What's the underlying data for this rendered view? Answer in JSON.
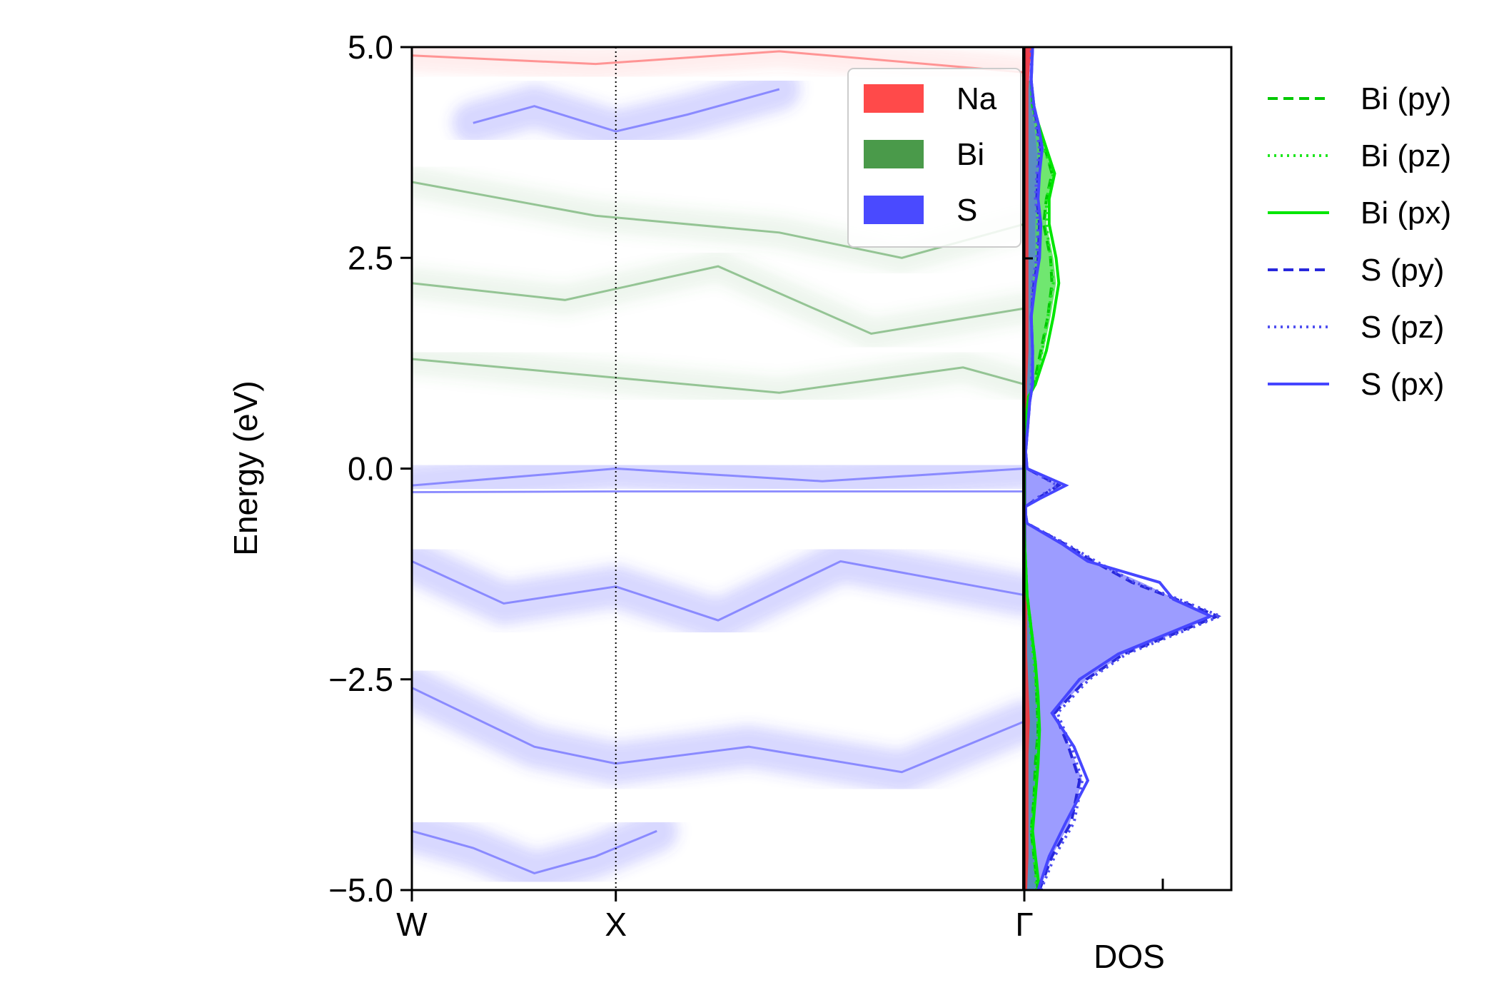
{
  "chart_data": [
    {
      "type": "heatmap",
      "ylabel": "Energy (eV)",
      "ylim": [
        -5.0,
        5.0
      ],
      "yticks": [
        "5.0",
        "2.5",
        "0.0",
        "−2.5",
        "−5.0"
      ],
      "ytick_values": [
        5.0,
        2.5,
        0.0,
        -2.5,
        -5.0
      ],
      "kpoints": [
        "W",
        "X",
        "Γ"
      ],
      "kpoint_positions": [
        0.0,
        0.333,
        1.0
      ],
      "legend_position": "top-right",
      "series": [
        {
          "name": "Na",
          "color": "#ff4a4a"
        },
        {
          "name": "Bi",
          "color": "#4a9a4a"
        },
        {
          "name": "S",
          "color": "#4a4aff"
        }
      ],
      "bands": [
        {
          "series": "S",
          "path": [
            [
              0.0,
              -0.28
            ],
            [
              0.333,
              -0.27
            ],
            [
              0.67,
              -0.27
            ],
            [
              1.0,
              -0.27
            ]
          ]
        },
        {
          "series": "S",
          "path": [
            [
              0.0,
              -0.2
            ],
            [
              0.333,
              0.0
            ],
            [
              0.67,
              -0.15
            ],
            [
              1.0,
              0.0
            ]
          ]
        },
        {
          "series": "S",
          "path": [
            [
              0.0,
              -1.1
            ],
            [
              0.15,
              -1.6
            ],
            [
              0.333,
              -1.4
            ],
            [
              0.5,
              -1.8
            ],
            [
              0.7,
              -1.1
            ],
            [
              1.0,
              -1.5
            ]
          ]
        },
        {
          "series": "S",
          "path": [
            [
              0.0,
              -2.6
            ],
            [
              0.2,
              -3.3
            ],
            [
              0.333,
              -3.5
            ],
            [
              0.55,
              -3.3
            ],
            [
              0.8,
              -3.6
            ],
            [
              1.0,
              -3.0
            ]
          ]
        },
        {
          "series": "S",
          "path": [
            [
              0.0,
              -4.3
            ],
            [
              0.1,
              -4.5
            ],
            [
              0.2,
              -4.8
            ],
            [
              0.3,
              -4.6
            ],
            [
              0.4,
              -4.3
            ]
          ]
        },
        {
          "series": "S",
          "path": [
            [
              0.1,
              4.1
            ],
            [
              0.2,
              4.3
            ],
            [
              0.333,
              4.0
            ],
            [
              0.45,
              4.2
            ],
            [
              0.6,
              4.5
            ]
          ]
        },
        {
          "series": "Bi",
          "path": [
            [
              0.0,
              3.4
            ],
            [
              0.3,
              3.0
            ],
            [
              0.6,
              2.8
            ],
            [
              0.8,
              2.5
            ],
            [
              1.0,
              2.9
            ]
          ]
        },
        {
          "series": "Bi",
          "path": [
            [
              0.0,
              2.2
            ],
            [
              0.25,
              2.0
            ],
            [
              0.5,
              2.4
            ],
            [
              0.75,
              1.6
            ],
            [
              1.0,
              1.9
            ]
          ]
        },
        {
          "series": "Bi",
          "path": [
            [
              0.0,
              1.3
            ],
            [
              0.3,
              1.1
            ],
            [
              0.6,
              0.9
            ],
            [
              0.9,
              1.2
            ],
            [
              1.0,
              1.0
            ]
          ]
        },
        {
          "series": "Na",
          "path": [
            [
              0.0,
              4.9
            ],
            [
              0.3,
              4.8
            ],
            [
              0.6,
              4.95
            ],
            [
              1.0,
              4.7
            ]
          ]
        }
      ]
    },
    {
      "type": "area",
      "xlabel": "DOS",
      "ylim": [
        -5.0,
        5.0
      ],
      "xlim": [
        0,
        1.5
      ],
      "legend_position": "right-outside",
      "series": [
        {
          "name": "Bi (py)",
          "color": "#00c800",
          "dash": "dashed",
          "x": [
            0.1,
            0.07,
            0.05,
            0.07,
            0.08,
            0.1,
            0.09,
            0.08,
            0.02,
            0.0,
            0.0,
            0.01,
            0.02,
            0.03,
            0.07,
            0.12,
            0.17,
            0.2,
            0.19,
            0.14,
            0.16,
            0.2,
            0.15,
            0.1,
            0.07,
            0.05
          ],
          "y": [
            -5.0,
            -4.6,
            -4.3,
            -3.9,
            -3.5,
            -3.1,
            -2.7,
            -2.3,
            -1.5,
            -0.8,
            0.0,
            0.4,
            0.7,
            0.85,
            1.0,
            1.4,
            1.8,
            2.2,
            2.5,
            2.9,
            3.2,
            3.5,
            3.8,
            4.1,
            4.3,
            4.6
          ]
        },
        {
          "name": "Bi (pz)",
          "color": "#1ee61e",
          "dash": "dotted",
          "x": [
            0.09,
            0.07,
            0.05,
            0.07,
            0.09,
            0.1,
            0.09,
            0.07,
            0.02,
            0.0,
            0.0,
            0.01,
            0.02,
            0.03,
            0.08,
            0.13,
            0.17,
            0.21,
            0.19,
            0.16,
            0.16,
            0.21,
            0.14,
            0.09,
            0.06,
            0.05
          ],
          "y": [
            -5.0,
            -4.6,
            -4.3,
            -3.9,
            -3.5,
            -3.1,
            -2.7,
            -2.3,
            -1.5,
            -0.8,
            0.0,
            0.4,
            0.7,
            0.85,
            1.0,
            1.4,
            1.8,
            2.2,
            2.5,
            2.9,
            3.2,
            3.5,
            3.8,
            4.1,
            4.3,
            4.6
          ]
        },
        {
          "name": "Bi (px)",
          "color": "#00e600",
          "dash": "solid",
          "x": [
            0.11,
            0.08,
            0.06,
            0.08,
            0.1,
            0.11,
            0.1,
            0.08,
            0.02,
            0.0,
            0.0,
            0.01,
            0.02,
            0.03,
            0.08,
            0.16,
            0.21,
            0.25,
            0.23,
            0.18,
            0.18,
            0.22,
            0.16,
            0.1,
            0.06,
            0.05
          ],
          "y": [
            -5.0,
            -4.6,
            -4.3,
            -3.9,
            -3.5,
            -3.1,
            -2.7,
            -2.3,
            -1.5,
            -0.8,
            0.0,
            0.4,
            0.7,
            0.85,
            1.0,
            1.4,
            1.8,
            2.2,
            2.5,
            2.9,
            3.2,
            3.5,
            3.8,
            4.1,
            4.3,
            4.6
          ]
        },
        {
          "name": "S (py)",
          "color": "#2828dc",
          "dash": "dashed",
          "x": [
            0.11,
            0.2,
            0.34,
            0.4,
            0.32,
            0.22,
            0.45,
            0.72,
            1.1,
            1.4,
            1.1,
            0.78,
            0.5,
            0.3,
            0.02,
            0.01,
            0.01,
            0.1,
            0.25,
            0.02,
            0.01,
            0.03,
            0.04,
            0.06,
            0.06,
            0.05,
            0.07,
            0.1,
            0.11,
            0.09,
            0.1,
            0.12,
            0.09,
            0.07,
            0.05,
            0.06
          ],
          "y": [
            -5.0,
            -4.6,
            -4.2,
            -3.7,
            -3.3,
            -2.9,
            -2.5,
            -2.2,
            -1.95,
            -1.75,
            -1.55,
            -1.35,
            -1.1,
            -0.9,
            -0.65,
            -0.55,
            -0.45,
            -0.35,
            -0.2,
            0.0,
            0.2,
            0.6,
            0.8,
            1.0,
            1.4,
            1.8,
            2.2,
            2.5,
            2.9,
            3.2,
            3.5,
            3.8,
            4.1,
            4.3,
            4.6,
            5.0
          ]
        },
        {
          "name": "S (pz)",
          "color": "#5050f0",
          "dash": "dotted",
          "x": [
            0.12,
            0.22,
            0.36,
            0.42,
            0.34,
            0.24,
            0.47,
            0.74,
            1.12,
            1.42,
            1.12,
            0.8,
            0.52,
            0.31,
            0.02,
            0.01,
            0.01,
            0.09,
            0.24,
            0.02,
            0.01,
            0.03,
            0.04,
            0.05,
            0.06,
            0.05,
            0.06,
            0.09,
            0.1,
            0.08,
            0.09,
            0.11,
            0.08,
            0.06,
            0.05,
            0.05
          ],
          "y": [
            -5.0,
            -4.6,
            -4.2,
            -3.7,
            -3.3,
            -2.9,
            -2.5,
            -2.2,
            -1.95,
            -1.75,
            -1.55,
            -1.35,
            -1.1,
            -0.9,
            -0.65,
            -0.55,
            -0.45,
            -0.35,
            -0.2,
            0.0,
            0.2,
            0.6,
            0.8,
            1.0,
            1.4,
            1.8,
            2.2,
            2.5,
            2.9,
            3.2,
            3.5,
            3.8,
            4.1,
            4.3,
            4.6,
            5.0
          ]
        },
        {
          "name": "S (px)",
          "color": "#4646ff",
          "dash": "solid",
          "x": [
            0.1,
            0.18,
            0.3,
            0.46,
            0.36,
            0.2,
            0.4,
            0.68,
            1.05,
            1.35,
            1.08,
            0.98,
            0.46,
            0.28,
            0.02,
            0.01,
            0.01,
            0.12,
            0.3,
            0.02,
            0.01,
            0.03,
            0.04,
            0.06,
            0.06,
            0.05,
            0.08,
            0.11,
            0.12,
            0.1,
            0.11,
            0.13,
            0.1,
            0.07,
            0.05,
            0.06
          ],
          "y": [
            -5.0,
            -4.6,
            -4.2,
            -3.7,
            -3.3,
            -2.9,
            -2.5,
            -2.2,
            -1.95,
            -1.75,
            -1.55,
            -1.35,
            -1.1,
            -0.9,
            -0.65,
            -0.55,
            -0.45,
            -0.35,
            -0.2,
            0.0,
            0.2,
            0.6,
            0.8,
            1.0,
            1.4,
            1.8,
            2.2,
            2.5,
            2.9,
            3.2,
            3.5,
            3.8,
            4.1,
            4.3,
            4.6,
            5.0
          ]
        }
      ],
      "filled": [
        {
          "element": "S",
          "color": "#7b7bff",
          "opacity": 0.75,
          "x": [
            0.11,
            0.2,
            0.33,
            0.42,
            0.33,
            0.22,
            0.45,
            0.72,
            1.1,
            1.38,
            1.1,
            0.85,
            0.5,
            0.3,
            0.02,
            0.01,
            0.01,
            0.1,
            0.26,
            0.02,
            0.01,
            0.03,
            0.04,
            0.06,
            0.06,
            0.05,
            0.07,
            0.1,
            0.11,
            0.09,
            0.1,
            0.12,
            0.09,
            0.07,
            0.05,
            0.06
          ],
          "y": [
            -5.0,
            -4.6,
            -4.2,
            -3.7,
            -3.3,
            -2.9,
            -2.5,
            -2.2,
            -1.95,
            -1.75,
            -1.55,
            -1.35,
            -1.1,
            -0.9,
            -0.65,
            -0.55,
            -0.45,
            -0.35,
            -0.2,
            0.0,
            0.2,
            0.6,
            0.8,
            1.0,
            1.4,
            1.8,
            2.2,
            2.5,
            2.9,
            3.2,
            3.5,
            3.8,
            4.1,
            4.3,
            4.6,
            5.0
          ]
        },
        {
          "element": "Bi",
          "color": "#33dd33",
          "opacity": 0.7,
          "x": [
            0.1,
            0.07,
            0.05,
            0.07,
            0.09,
            0.1,
            0.09,
            0.08,
            0.02,
            0.0,
            0.0,
            0.01,
            0.02,
            0.03,
            0.08,
            0.14,
            0.19,
            0.23,
            0.21,
            0.16,
            0.17,
            0.21,
            0.15,
            0.1,
            0.06,
            0.05
          ],
          "y": [
            -5.0,
            -4.6,
            -4.3,
            -3.9,
            -3.5,
            -3.1,
            -2.7,
            -2.3,
            -1.5,
            -0.8,
            0.0,
            0.4,
            0.7,
            0.85,
            1.0,
            1.4,
            1.8,
            2.2,
            2.5,
            2.9,
            3.2,
            3.5,
            3.8,
            4.1,
            4.3,
            4.6
          ]
        },
        {
          "element": "overlap",
          "color": "#5a8fc0",
          "opacity": 1.0,
          "x": [
            0.09,
            0.07,
            0.05,
            0.07,
            0.09,
            0.1,
            0.09,
            0.07,
            0.02,
            0.0,
            0.0,
            0.01,
            0.02,
            0.03,
            0.06,
            0.06,
            0.05,
            0.06,
            0.08,
            0.08,
            0.09,
            0.1,
            0.09,
            0.07,
            0.05,
            0.05
          ],
          "y": [
            -5.0,
            -4.6,
            -4.3,
            -3.9,
            -3.5,
            -3.1,
            -2.7,
            -2.3,
            -1.5,
            -0.8,
            0.0,
            0.4,
            0.7,
            0.85,
            1.0,
            1.4,
            1.8,
            2.2,
            2.5,
            2.9,
            3.2,
            3.5,
            3.8,
            4.1,
            4.3,
            4.6
          ]
        },
        {
          "element": "Na",
          "color": "#ff3030",
          "opacity": 0.85,
          "x": [
            0.02,
            0.03,
            0.03,
            0.03,
            0.03,
            0.04,
            0.03,
            0.02,
            0.02,
            0.02,
            0.01,
            0.01,
            0.01,
            0.02,
            0.02,
            0.03,
            0.03,
            0.03,
            0.03,
            0.03,
            0.03,
            0.03,
            0.03,
            0.03,
            0.04,
            0.06
          ],
          "y": [
            -5.0,
            -4.6,
            -4.2,
            -3.8,
            -3.4,
            -3.0,
            -2.6,
            -2.2,
            -1.8,
            -1.4,
            -1.0,
            -0.6,
            0.0,
            0.6,
            1.0,
            1.4,
            1.8,
            2.2,
            2.6,
            3.0,
            3.4,
            3.8,
            4.2,
            4.5,
            4.8,
            5.0
          ]
        }
      ]
    }
  ]
}
